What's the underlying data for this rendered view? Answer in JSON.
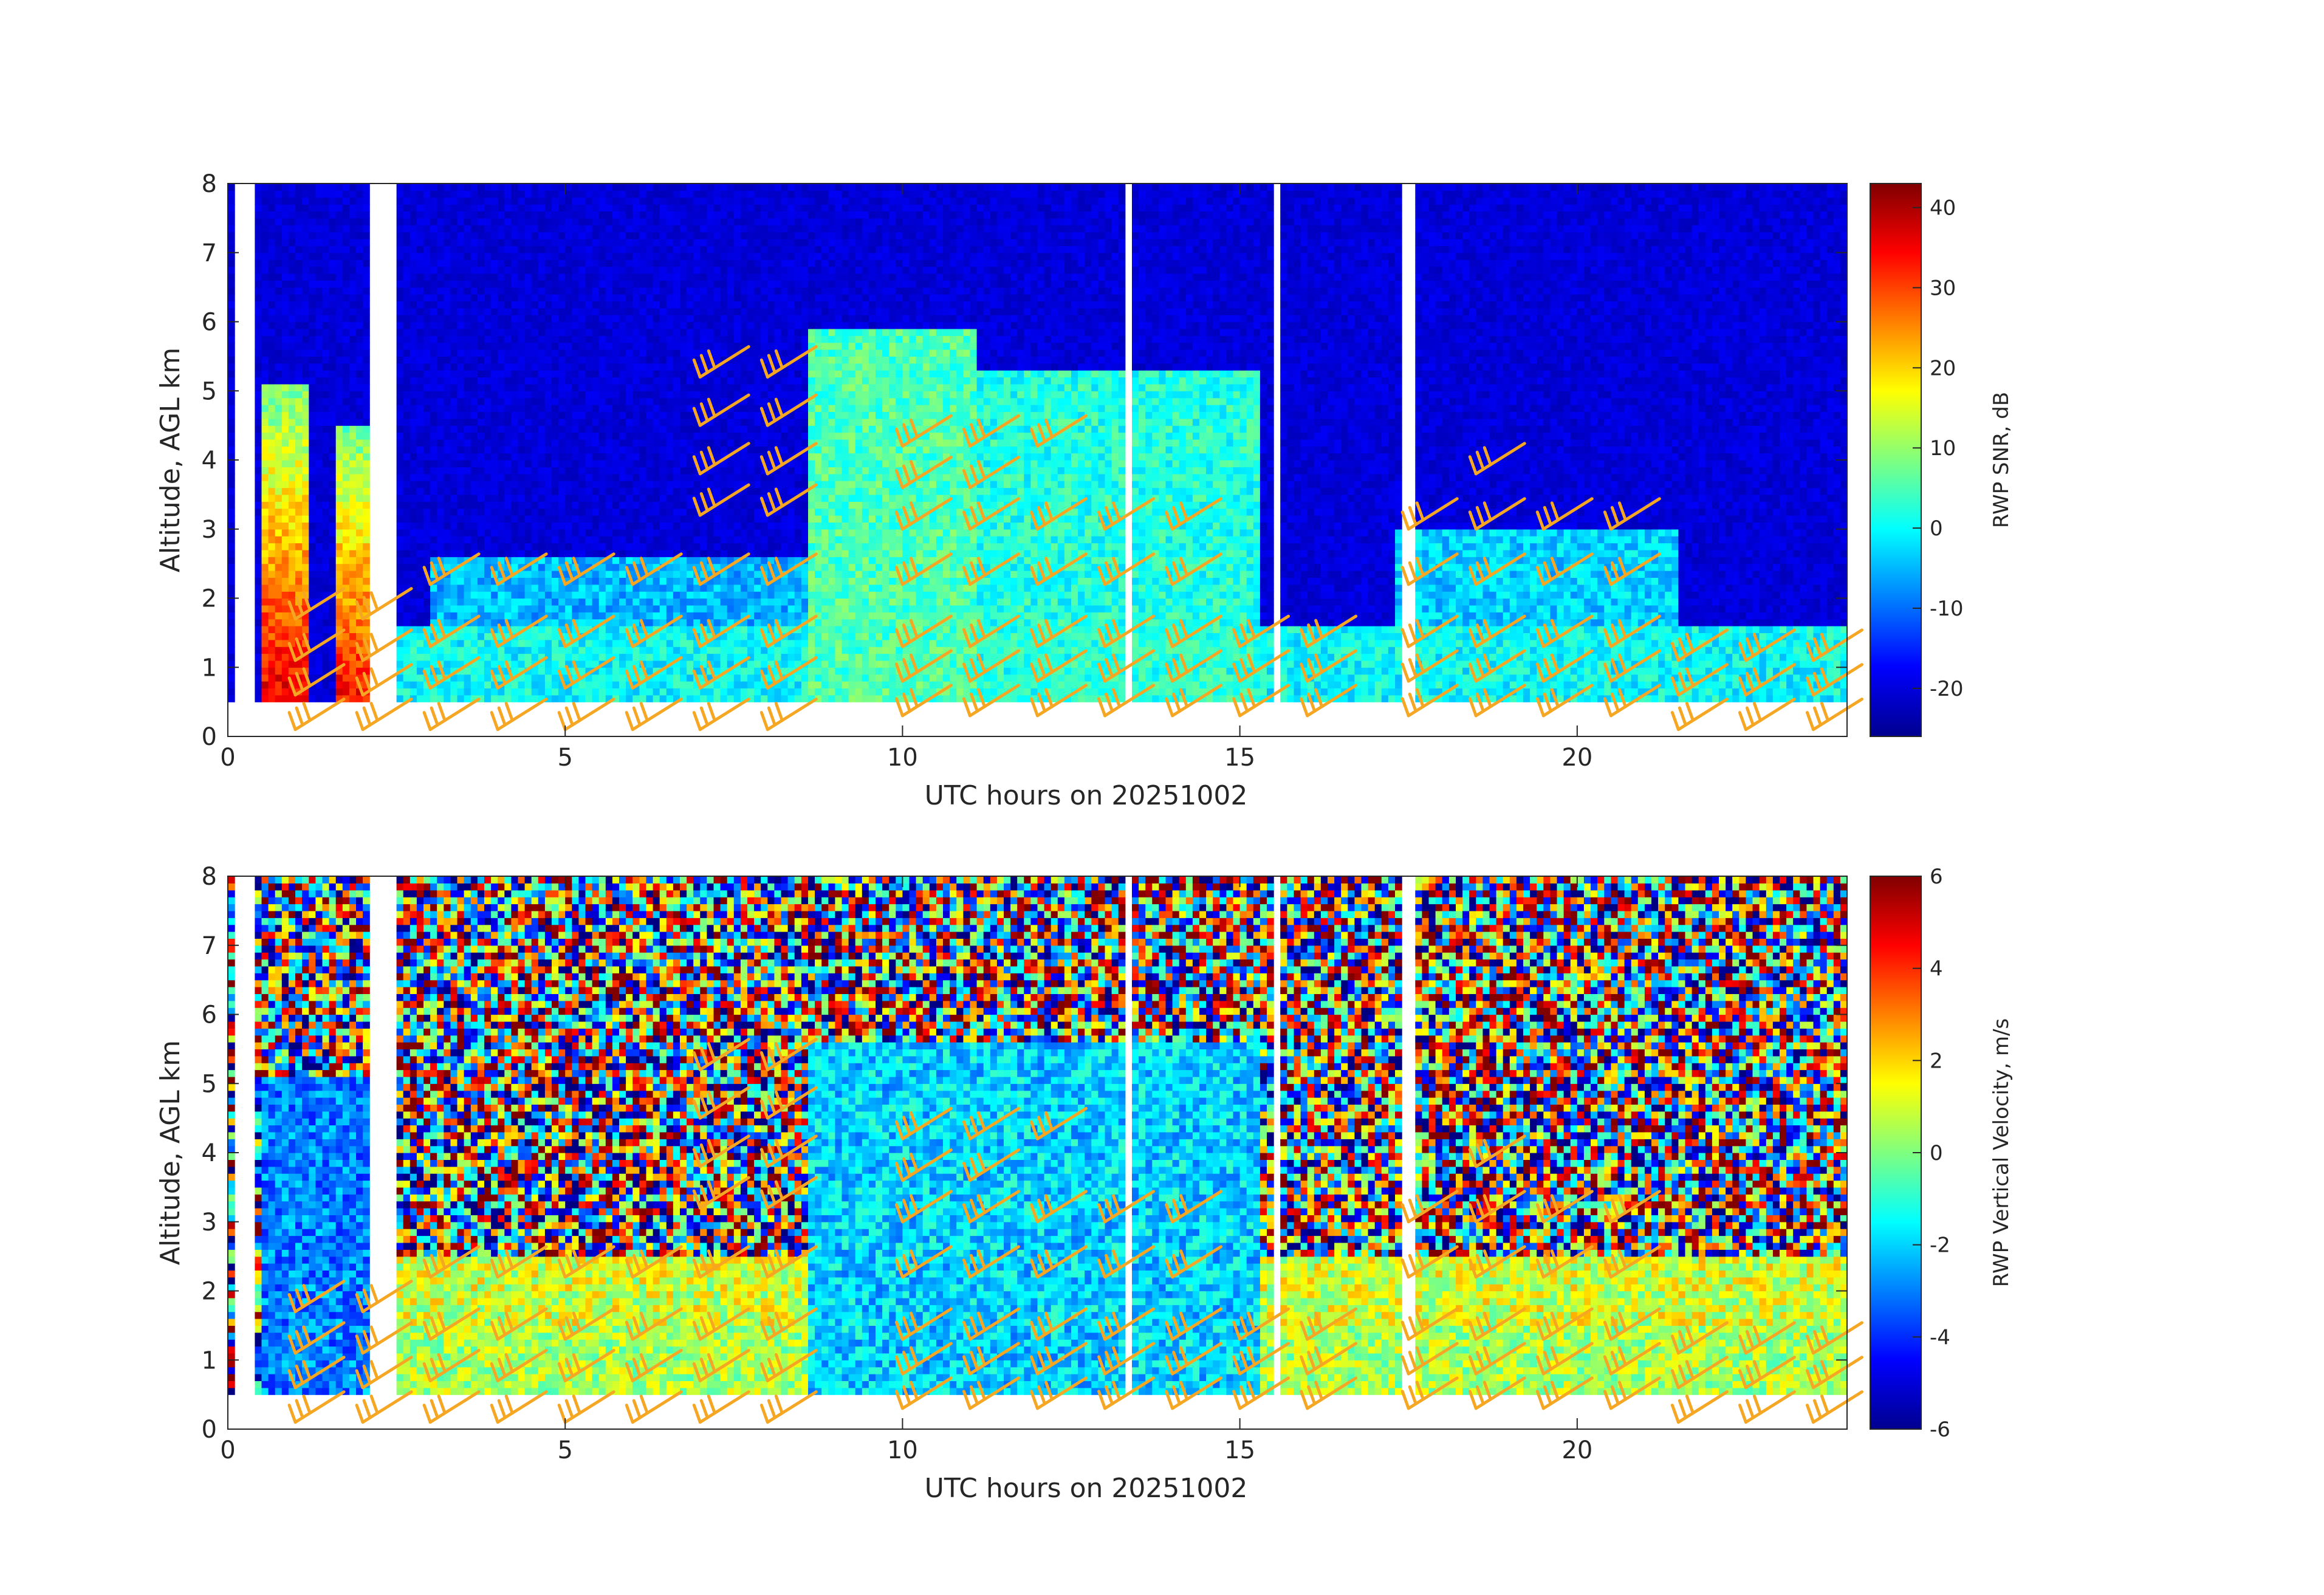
{
  "chart_data": [
    {
      "type": "heatmap",
      "panel": "top",
      "quantity": "RWP signal-to-noise ratio",
      "xlabel": "UTC hours on 20251002",
      "ylabel": "Altitude, AGL km",
      "xlim": [
        0,
        24
      ],
      "ylim": [
        0,
        8
      ],
      "xticks": [
        0,
        5,
        10,
        15,
        20
      ],
      "yticks": [
        0,
        1,
        2,
        3,
        4,
        5,
        6,
        7,
        8
      ],
      "colorbar": {
        "label": "RWP SNR, dB",
        "colormap": "jet",
        "clim": [
          -26,
          43
        ],
        "ticks": [
          40,
          30,
          20,
          10,
          0,
          -10,
          -20
        ]
      },
      "data_gate_range_km": [
        0.5,
        7.9
      ],
      "data_gaps_utc": [
        [
          0.08,
          0.45
        ],
        [
          2.1,
          2.48
        ],
        [
          13.25,
          13.35
        ],
        [
          15.5,
          15.62
        ],
        [
          17.4,
          17.55
        ]
      ],
      "background_snr_db": -20,
      "features": [
        {
          "desc": "precipitation/strong echo column",
          "x_range": [
            0.45,
            1.1
          ],
          "y_range": [
            0.2,
            5.0
          ],
          "snr_db_peak": 38
        },
        {
          "desc": "precipitation/strong echo column",
          "x_range": [
            1.6,
            2.1
          ],
          "y_range": [
            0.2,
            4.5
          ],
          "snr_db_peak": 36
        },
        {
          "desc": "boundary layer return",
          "x_range": [
            2.5,
            24.0
          ],
          "y_range": [
            0.5,
            1.6
          ],
          "snr_db": 0
        },
        {
          "desc": "elevated layer",
          "x_range": [
            3.0,
            8.5
          ],
          "y_range": [
            1.6,
            2.6
          ],
          "snr_db": -5
        },
        {
          "desc": "cloud/precip plume",
          "x_range": [
            8.5,
            11.0
          ],
          "y_range": [
            0.5,
            5.8
          ],
          "snr_db": 5
        },
        {
          "desc": "convective returns",
          "x_range": [
            11.0,
            15.2
          ],
          "y_range": [
            0.5,
            5.2
          ],
          "snr_db": 2
        },
        {
          "desc": "descending layer",
          "x_range": [
            17.2,
            21.5
          ],
          "y_range": [
            1.2,
            3.0
          ],
          "snr_db": -3
        }
      ],
      "wind_barbs": {
        "color": "#F5A623",
        "rows": [
          {
            "utc": 1.0,
            "alt_km": [
              0.1,
              0.6,
              1.1,
              1.7
            ]
          },
          {
            "utc": 2.0,
            "alt_km": [
              0.1,
              0.6,
              1.1,
              1.7
            ]
          },
          {
            "utc": 3.0,
            "alt_km": [
              0.1,
              0.7,
              1.3,
              2.2
            ]
          },
          {
            "utc": 4.0,
            "alt_km": [
              0.1,
              0.7,
              1.3,
              2.2
            ]
          },
          {
            "utc": 5.0,
            "alt_km": [
              0.1,
              0.7,
              1.3,
              2.2
            ]
          },
          {
            "utc": 6.0,
            "alt_km": [
              0.1,
              0.7,
              1.3,
              2.2
            ]
          },
          {
            "utc": 7.0,
            "alt_km": [
              0.1,
              0.7,
              1.3,
              2.2,
              3.2,
              3.8,
              4.5,
              5.2
            ]
          },
          {
            "utc": 8.0,
            "alt_km": [
              0.1,
              0.7,
              1.3,
              2.2,
              3.2,
              3.8,
              4.5,
              5.2
            ]
          },
          {
            "utc": 10.0,
            "alt_km": [
              0.3,
              0.8,
              1.3,
              2.2,
              3.0,
              3.6,
              4.2
            ]
          },
          {
            "utc": 11.0,
            "alt_km": [
              0.3,
              0.8,
              1.3,
              2.2,
              3.0,
              3.6,
              4.2
            ]
          },
          {
            "utc": 12.0,
            "alt_km": [
              0.3,
              0.8,
              1.3,
              2.2,
              3.0,
              4.2
            ]
          },
          {
            "utc": 13.0,
            "alt_km": [
              0.3,
              0.8,
              1.3,
              2.2,
              3.0
            ]
          },
          {
            "utc": 14.0,
            "alt_km": [
              0.3,
              0.8,
              1.3,
              2.2,
              3.0
            ]
          },
          {
            "utc": 15.0,
            "alt_km": [
              0.3,
              0.8,
              1.3
            ]
          },
          {
            "utc": 16.0,
            "alt_km": [
              0.3,
              0.8,
              1.3
            ]
          },
          {
            "utc": 17.5,
            "alt_km": [
              0.3,
              0.8,
              1.3,
              2.2,
              3.0
            ]
          },
          {
            "utc": 18.5,
            "alt_km": [
              0.3,
              0.8,
              1.3,
              2.2,
              3.0,
              3.8
            ]
          },
          {
            "utc": 19.5,
            "alt_km": [
              0.3,
              0.8,
              1.3,
              2.2,
              3.0
            ]
          },
          {
            "utc": 20.5,
            "alt_km": [
              0.3,
              0.8,
              1.3,
              2.2,
              3.0
            ]
          },
          {
            "utc": 21.5,
            "alt_km": [
              0.1,
              0.6,
              1.1
            ]
          },
          {
            "utc": 22.5,
            "alt_km": [
              0.1,
              0.6,
              1.1
            ]
          },
          {
            "utc": 23.5,
            "alt_km": [
              0.1,
              0.6,
              1.1
            ]
          }
        ]
      }
    },
    {
      "type": "heatmap",
      "panel": "bottom",
      "quantity": "RWP vertical velocity",
      "xlabel": "UTC hours on 20251002",
      "ylabel": "Altitude, AGL km",
      "xlim": [
        0,
        24
      ],
      "ylim": [
        0,
        8
      ],
      "xticks": [
        0,
        5,
        10,
        15,
        20
      ],
      "yticks": [
        0,
        1,
        2,
        3,
        4,
        5,
        6,
        7,
        8
      ],
      "colorbar": {
        "label": "RWP Vertical Velocity, m/s",
        "colormap": "jet",
        "clim": [
          -6,
          6
        ],
        "ticks": [
          6,
          4,
          2,
          0,
          -2,
          -4,
          -6
        ]
      },
      "data_gate_range_km": [
        0.5,
        7.9
      ],
      "data_gaps_utc": [
        [
          0.08,
          0.45
        ],
        [
          2.1,
          2.48
        ],
        [
          13.25,
          13.35
        ],
        [
          15.5,
          15.62
        ],
        [
          17.4,
          17.55
        ]
      ],
      "features": [
        {
          "desc": "noisy random velocities above signal",
          "x_range": [
            2.5,
            24.0
          ],
          "y_range": [
            2.5,
            7.9
          ],
          "w_ms": "random"
        },
        {
          "desc": "falling hydrometeors",
          "x_range": [
            0.45,
            2.1
          ],
          "y_range": [
            0.2,
            5.0
          ],
          "w_ms": -3
        },
        {
          "desc": "boundary layer near-zero motion",
          "x_range": [
            2.5,
            24.0
          ],
          "y_range": [
            0.5,
            1.5
          ],
          "w_ms": 0.5
        },
        {
          "desc": "precipitation fall streaks",
          "x_range": [
            8.5,
            15.2
          ],
          "y_range": [
            0.5,
            5.5
          ],
          "w_ms": -2
        }
      ],
      "wind_barbs": "same as top panel"
    }
  ]
}
